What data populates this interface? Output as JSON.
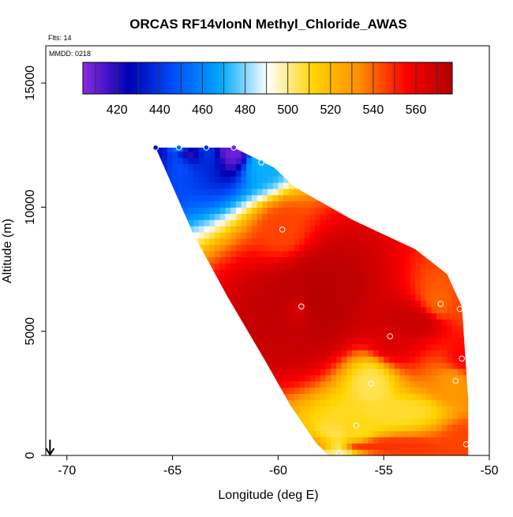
{
  "chart_data": {
    "type": "heatmap",
    "title": "ORCAS RF14vlonN Methyl_Chloride_AWAS",
    "subtitle_flights": "Flts: 14",
    "subtitle_date": "MMDD: 0218",
    "xlabel": "Longitude (deg E)",
    "ylabel": "Altitude (m)",
    "xlim": [
      -71,
      -50
    ],
    "ylim": [
      0,
      16500
    ],
    "x_ticks": [
      -70,
      -65,
      -60,
      -55,
      -50
    ],
    "x_tick_labels": [
      "-70",
      "-65",
      "-60",
      "-55",
      "-50"
    ],
    "y_ticks": [
      0,
      5000,
      10000,
      15000
    ],
    "y_tick_labels": [
      "0",
      "5000",
      "10000",
      "15000"
    ],
    "colorbar": {
      "range": [
        404,
        577
      ],
      "ticks": [
        420,
        440,
        460,
        480,
        500,
        520,
        540,
        560
      ],
      "tick_labels": [
        "420",
        "440",
        "460",
        "480",
        "500",
        "520",
        "540",
        "560"
      ],
      "colors": [
        "#8a2be2",
        "#0000b4",
        "#0050ff",
        "#00aaff",
        "#ffffff",
        "#ffd400",
        "#ff8c00",
        "#ff0000",
        "#b00000"
      ]
    },
    "domain_boundary": [
      [
        -65.8,
        12400
      ],
      [
        -62.1,
        12400
      ],
      [
        -60.2,
        11600
      ],
      [
        -59.2,
        10800
      ],
      [
        -56.5,
        9500
      ],
      [
        -53.5,
        8300
      ],
      [
        -52.0,
        7300
      ],
      [
        -51.3,
        6000
      ],
      [
        -51.0,
        2300
      ],
      [
        -51.0,
        0
      ],
      [
        -57.6,
        0
      ],
      [
        -58.2,
        500
      ],
      [
        -59.4,
        2000
      ],
      [
        -60.6,
        3800
      ],
      [
        -62.4,
        6400
      ],
      [
        -64.0,
        8900
      ],
      [
        -65.8,
        12400
      ]
    ],
    "field_centers": [
      {
        "lon": -58.5,
        "alt": 6200,
        "value": 575,
        "radius_lon": 3.6,
        "radius_alt": 3000
      },
      {
        "lon": -53.8,
        "alt": 5400,
        "value": 570,
        "radius_lon": 4.2,
        "radius_alt": 1300
      },
      {
        "lon": -55.5,
        "alt": 400,
        "value": 548,
        "radius_lon": 5.0,
        "radius_alt": 600
      },
      {
        "lon": -54.5,
        "alt": 1800,
        "value": 508,
        "radius_lon": 4.0,
        "radius_alt": 900
      },
      {
        "lon": -64.3,
        "alt": 12200,
        "value": 418,
        "radius_lon": 2.3,
        "radius_alt": 900
      },
      {
        "lon": -62.5,
        "alt": 12300,
        "value": 412,
        "radius_lon": 1.5,
        "radius_alt": 500
      }
    ],
    "observations": [
      {
        "lon": -65.8,
        "alt": 12400,
        "value": 430
      },
      {
        "lon": -64.7,
        "alt": 12400,
        "value": 455
      },
      {
        "lon": -63.4,
        "alt": 12400,
        "value": 440
      },
      {
        "lon": -62.1,
        "alt": 12400,
        "value": 408
      },
      {
        "lon": -60.8,
        "alt": 11800,
        "value": 470
      },
      {
        "lon": -59.8,
        "alt": 9100,
        "value": 545
      },
      {
        "lon": -58.9,
        "alt": 6000,
        "value": 560
      },
      {
        "lon": -54.7,
        "alt": 4800,
        "value": 565
      },
      {
        "lon": -52.3,
        "alt": 6100,
        "value": 540
      },
      {
        "lon": -51.4,
        "alt": 5900,
        "value": 545
      },
      {
        "lon": -51.3,
        "alt": 3900,
        "value": 555
      },
      {
        "lon": -55.6,
        "alt": 2900,
        "value": 505
      },
      {
        "lon": -51.6,
        "alt": 3000,
        "value": 530
      },
      {
        "lon": -56.3,
        "alt": 1200,
        "value": 510
      },
      {
        "lon": -51.1,
        "alt": 450,
        "value": 545
      },
      {
        "lon": -57.1,
        "alt": 100,
        "value": 500
      }
    ],
    "arrow_marker": {
      "lon": -70.8,
      "direction": "down"
    }
  }
}
